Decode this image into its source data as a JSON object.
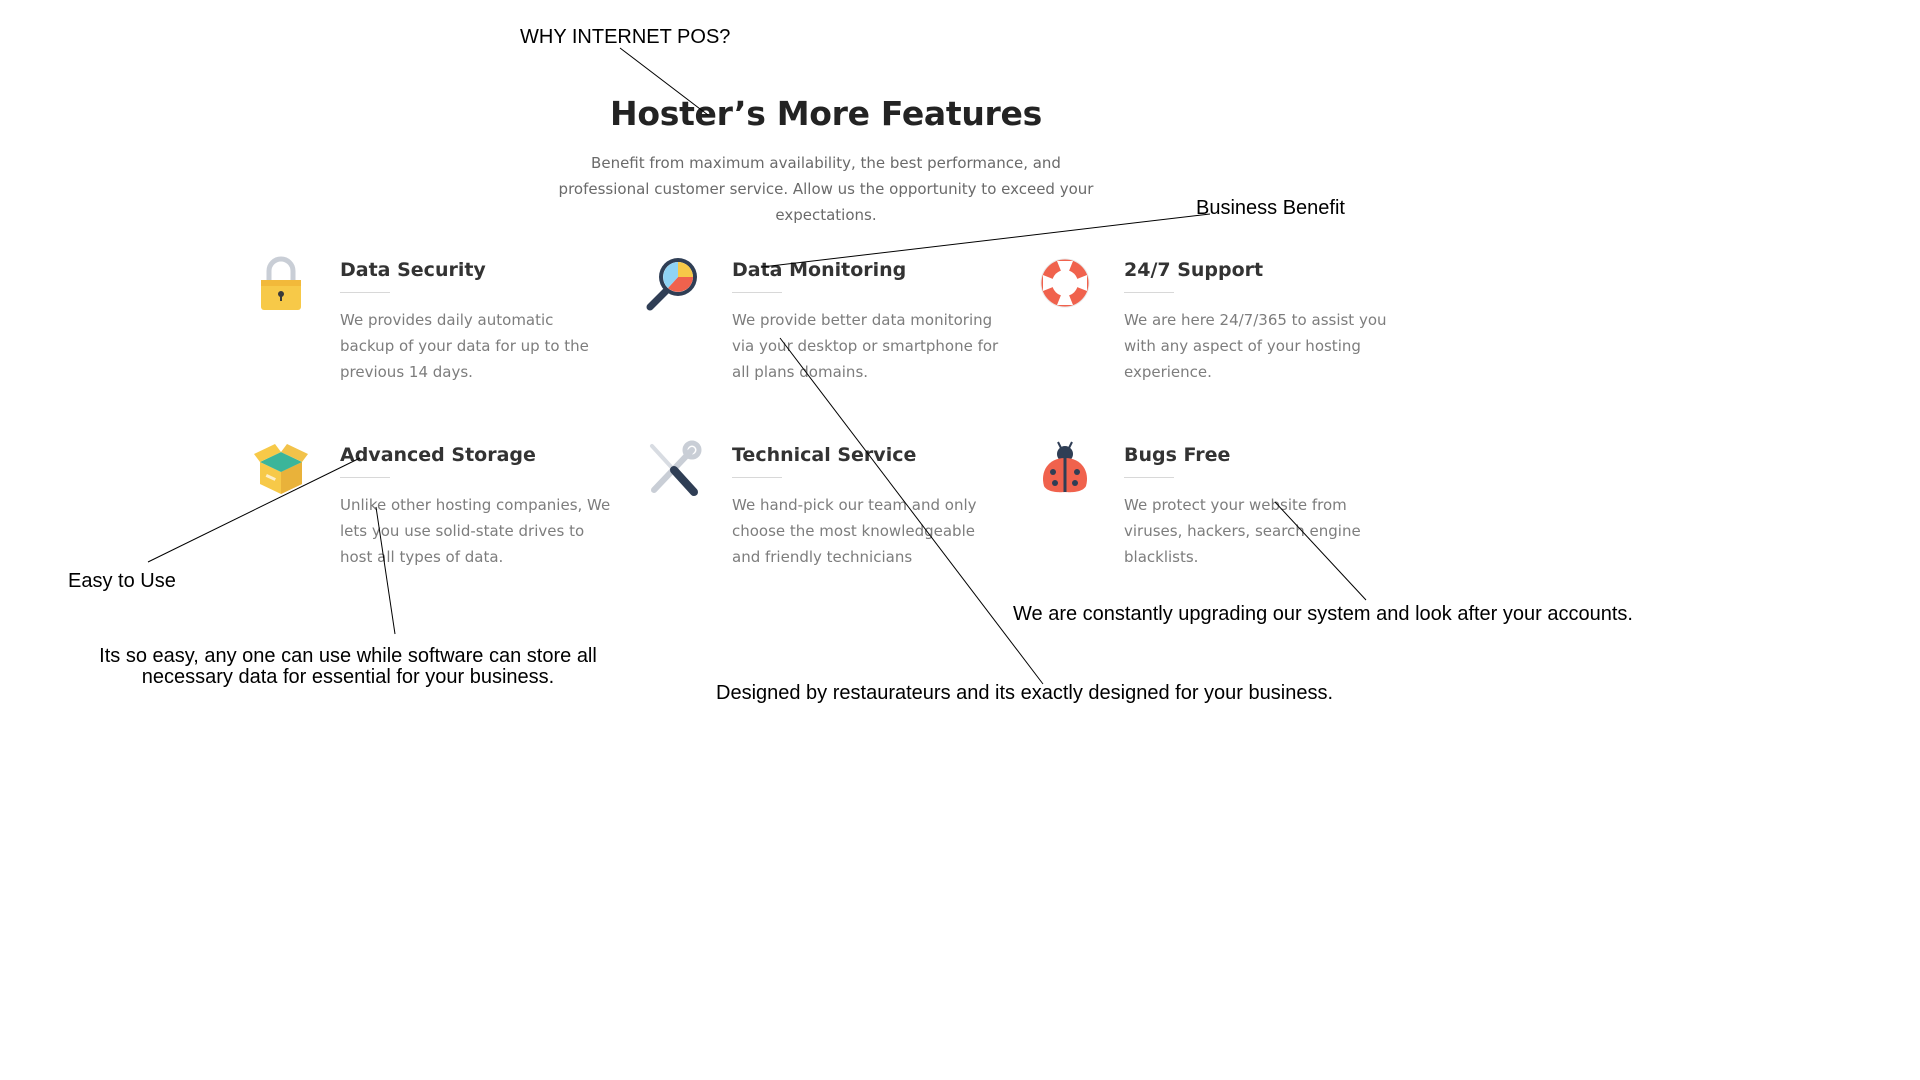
{
  "section": {
    "title": "Hoster’s More Features",
    "subtitle": "Benefit from maximum availability, the best performance, and professional customer service. Allow us the opportunity to exceed your expectations."
  },
  "features": [
    {
      "title": "Data Security",
      "description": "We provides daily automatic backup of your data for up to the previous 14 days.",
      "icon": "padlock-icon"
    },
    {
      "title": "Data Monitoring",
      "description": "We provide better data monitoring via your desktop or smartphone for all plans domains.",
      "icon": "magnifier-chart-icon"
    },
    {
      "title": "24/7 Support",
      "description": "We are here 24/7/365 to assist you with any aspect of your hosting experience.",
      "icon": "lifebuoy-icon"
    },
    {
      "title": "Advanced Storage",
      "description": "Unlike other hosting companies, We lets you use solid-state drives to host all types of data.",
      "icon": "open-box-icon"
    },
    {
      "title": "Technical Service",
      "description": "We hand-pick our team and only choose the most knowledgeable and friendly technicians",
      "icon": "wrench-screwdriver-icon"
    },
    {
      "title": "Bugs Free",
      "description": "We protect your website from viruses, hackers, search engine blacklists.",
      "icon": "ladybug-icon"
    }
  ],
  "annotations": {
    "why": "WHY INTERNET POS?",
    "business_benefit": "Business Benefit",
    "easy_to_use": "Easy to Use",
    "easy_desc": "Its so easy, any one can use while software can store all necessary data for essential for your business.",
    "designed": "Designed by restaurateurs  and its exactly designed for your business.",
    "upgrading": "We are constantly upgrading our system and look after your accounts."
  },
  "colors": {
    "heading": "#232323",
    "body_text": "#7d7d7d",
    "lock_yellow": "#f7c948",
    "accent_red": "#f0624d",
    "accent_teal": "#3bb59a"
  }
}
